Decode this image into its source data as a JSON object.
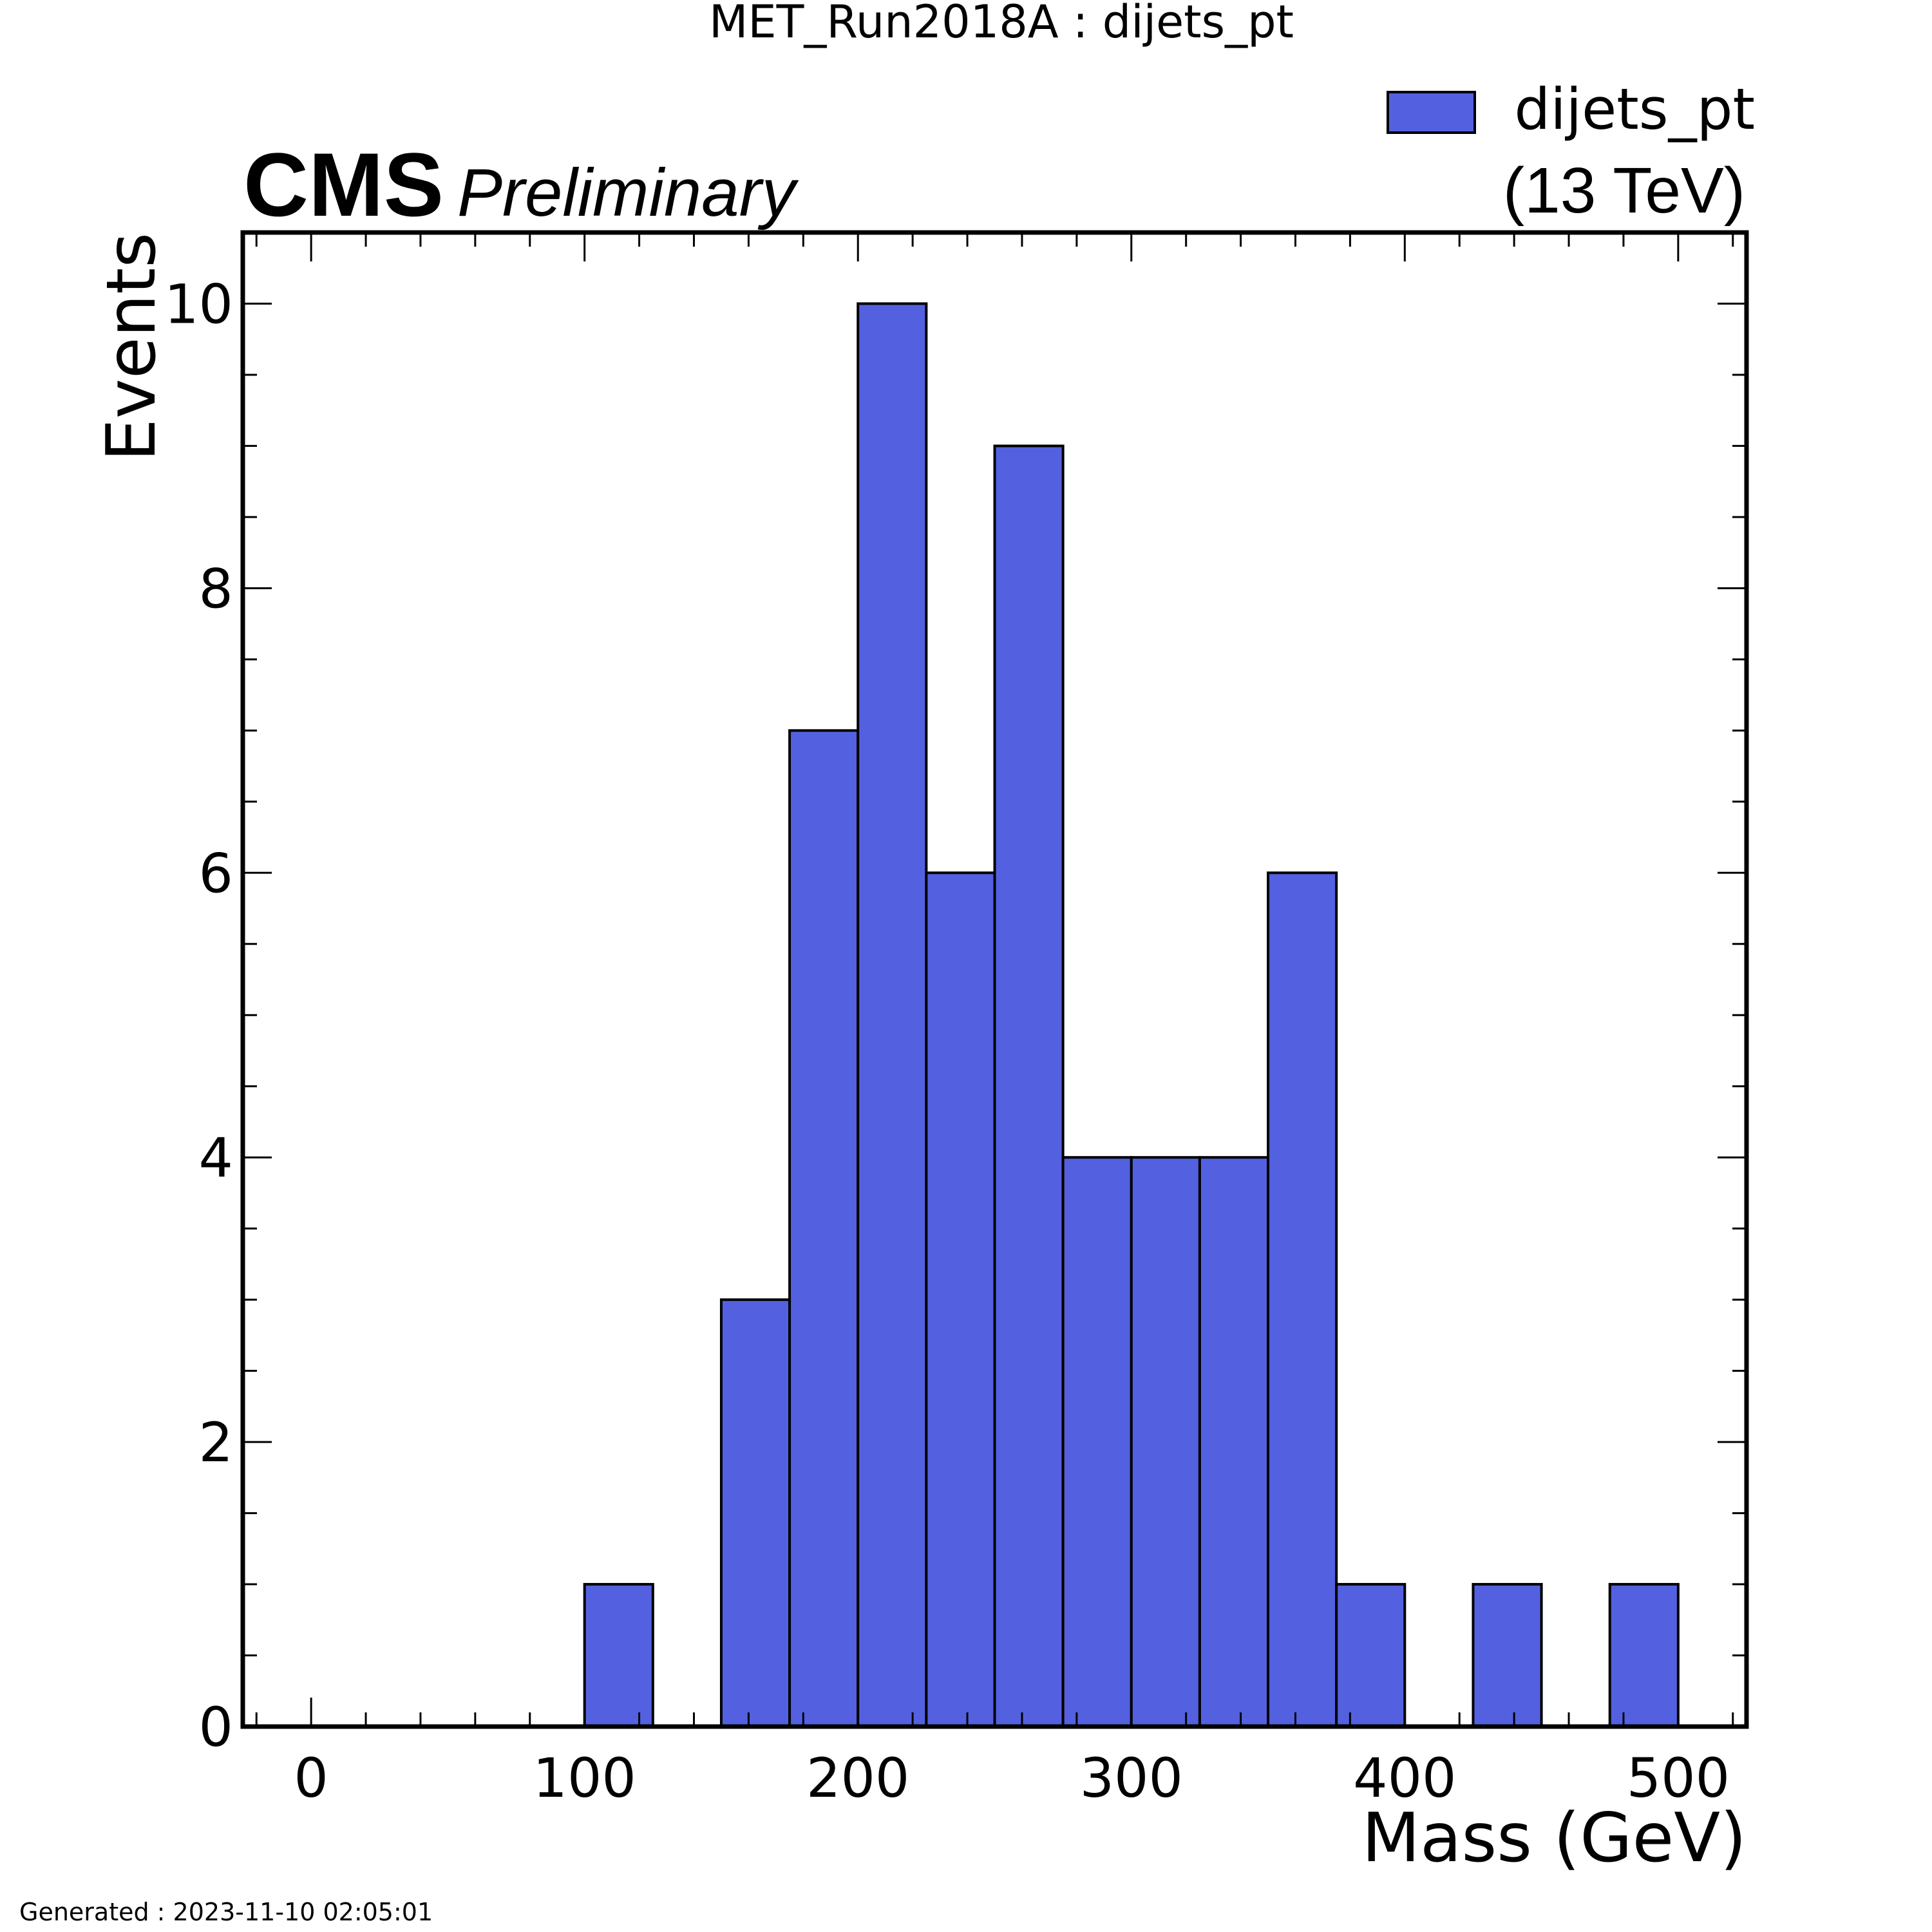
{
  "figure": {
    "title": "MET_Run2018A : dijets_pt",
    "experiment": "CMS",
    "status": "Preliminary",
    "energy": "(13 TeV)",
    "footer": "Generated : 2023-11-10 02:05:01"
  },
  "colors": {
    "fill": "#5361e0",
    "edge": "#000000",
    "axis": "#000000",
    "background": "#ffffff"
  },
  "chart_data": {
    "type": "bar",
    "histogram": true,
    "title": "MET_Run2018A : dijets_pt",
    "xlabel": "Mass (GeV)",
    "ylabel": "Events",
    "xlim": [
      -25,
      525
    ],
    "ylim": [
      0,
      10.5
    ],
    "bin_width": 25,
    "bin_edges": [
      0,
      25,
      50,
      75,
      100,
      125,
      150,
      175,
      200,
      225,
      250,
      275,
      300,
      325,
      350,
      375,
      400,
      425,
      450,
      475,
      500
    ],
    "x_ticks": [
      "0",
      "100",
      "200",
      "300",
      "400",
      "500"
    ],
    "y_ticks": [
      "0",
      "2",
      "4",
      "6",
      "8",
      "10"
    ],
    "series": [
      {
        "name": "dijets_pt",
        "values": [
          0,
          0,
          0,
          0,
          1,
          0,
          3,
          7,
          10,
          6,
          9,
          4,
          4,
          4,
          6,
          1,
          0,
          1,
          0,
          1
        ]
      }
    ],
    "legend": {
      "placement": "top-right",
      "entries": [
        "dijets_pt"
      ]
    },
    "grid": false
  }
}
